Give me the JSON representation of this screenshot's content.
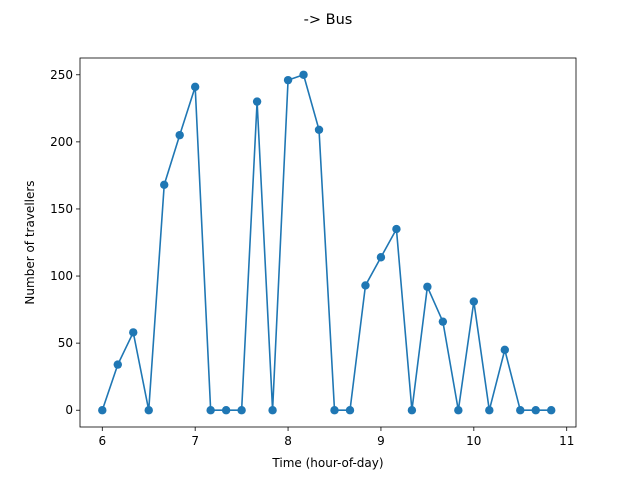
{
  "chart_data": {
    "type": "line",
    "title": "-> Bus",
    "xlabel": "Time (hour-of-day)",
    "ylabel": "Number of travellers",
    "xlim": [
      5.76,
      11.1
    ],
    "ylim": [
      -12.5,
      262.5
    ],
    "xticks": [
      6,
      7,
      8,
      9,
      10,
      11
    ],
    "yticks": [
      0,
      50,
      100,
      150,
      200,
      250
    ],
    "grid": false,
    "marker": "circle",
    "color": "#1f77b4",
    "series": [
      {
        "x": [
          6.0,
          6.1667,
          6.3333,
          6.5,
          6.6667,
          6.8333,
          7.0,
          7.1667,
          7.3333,
          7.5,
          7.6667,
          7.8333,
          8.0,
          8.1667,
          8.3333,
          8.5,
          8.6667,
          8.8333,
          9.0,
          9.1667,
          9.3333,
          9.5,
          9.6667,
          9.8333,
          10.0,
          10.1667,
          10.3333,
          10.5,
          10.6667,
          10.8333
        ],
        "values": [
          0,
          34,
          58,
          0,
          168,
          205,
          241,
          0,
          0,
          0,
          230,
          0,
          246,
          250,
          209,
          0,
          0,
          93,
          114,
          135,
          0,
          92,
          66,
          0,
          81,
          0,
          45,
          0,
          0,
          0
        ]
      }
    ]
  }
}
